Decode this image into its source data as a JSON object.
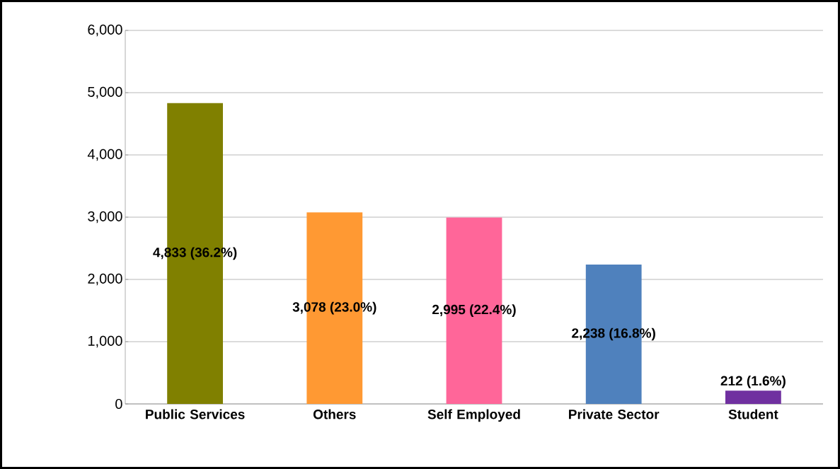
{
  "chart_data": {
    "type": "bar",
    "categories": [
      "Public Services",
      "Others",
      "Self Employed",
      "Private Sector",
      "Student"
    ],
    "values": [
      4833,
      3078,
      2995,
      2238,
      212
    ],
    "colors": [
      "#808000",
      "#ff9933",
      "#ff6699",
      "#4f81bd",
      "#7030a0"
    ],
    "value_labels": [
      "4,833 (36.2%)",
      "3,078 (23.0%)",
      "2,995 (22.4%)",
      "2,238 (16.8%)",
      "212 (1.6%)"
    ],
    "ylim": [
      0,
      6000
    ],
    "yticks": [
      {
        "value": 0,
        "label": "0"
      },
      {
        "value": 1000,
        "label": "1,000"
      },
      {
        "value": 2000,
        "label": "2,000"
      },
      {
        "value": 3000,
        "label": "3,000"
      },
      {
        "value": 4000,
        "label": "4,000"
      },
      {
        "value": 5000,
        "label": "5,000"
      },
      {
        "value": 6000,
        "label": "6,000"
      }
    ],
    "grid": "y"
  }
}
